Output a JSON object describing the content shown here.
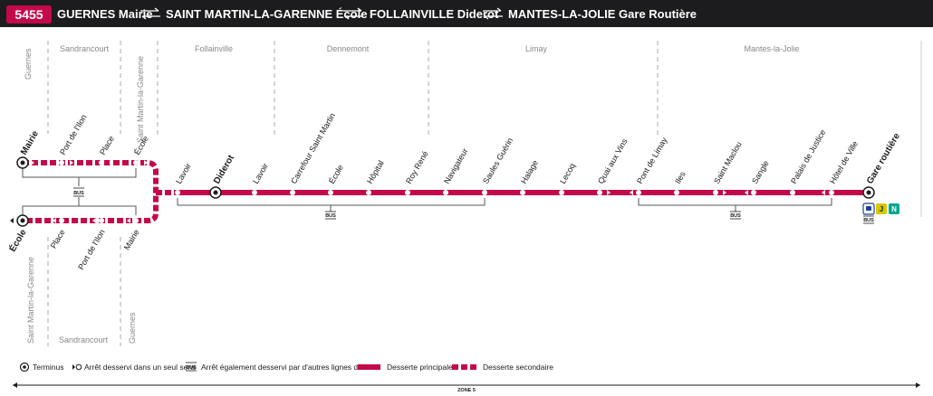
{
  "line": {
    "number": "5455",
    "color": "#c4094b"
  },
  "header": {
    "segments": [
      "GUERNES Mairie",
      "SAINT MARTIN-LA-GARENNE École",
      "FOLLAINVILLE Diderot",
      "MANTES-LA-JOLIE Gare Routière"
    ]
  },
  "communes": {
    "guernes_top": "Guernes",
    "sandrancourt_top": "Sandrancourt",
    "saint_martin_top": "Saint Martin-la-Garenne",
    "follainville": "Follainville",
    "dennemont": "Dennemont",
    "limay": "Limay",
    "mantes": "Mantes-la-Jolie",
    "saint_martin_bottom": "Saint Martin-la-Garenne",
    "sandrancourt_bottom": "Sandrancourt",
    "guernes_bottom": "Guernes"
  },
  "stops_top": [
    "Mairie",
    "Port de l'Ilon",
    "Place",
    "École"
  ],
  "stops_bottom": [
    "École",
    "Place",
    "Port de l'Ilon",
    "Mairie"
  ],
  "stops_main": [
    "Lavoir",
    "Diderot",
    "Lavoir",
    "Carrefour Saint Martin",
    "École",
    "Hôpital",
    "Roy René",
    "Navigateur",
    "Saules Guérin",
    "Halage",
    "Lecoq",
    "Quai aux Vins",
    "Pont de Limay",
    "Iles",
    "Saint Maclou",
    "Sangle",
    "Palais de Justice",
    "Hôtel de Ville",
    "Gare routière"
  ],
  "bus_label": "BUS",
  "connections": {
    "rer_j": "J",
    "rer_n": "N",
    "colors": {
      "j": "#d5c900",
      "n": "#00a88f",
      "train": "#1c3f8f"
    }
  },
  "legend": {
    "terminus": "Terminus",
    "one_way": "Arrêt desservi dans un seul sens",
    "bus": "Arrêt également desservi par d'autres lignes de bus",
    "main": "Desserte principale",
    "secondary": "Desserte secondaire"
  },
  "zone": "ZONE 5"
}
